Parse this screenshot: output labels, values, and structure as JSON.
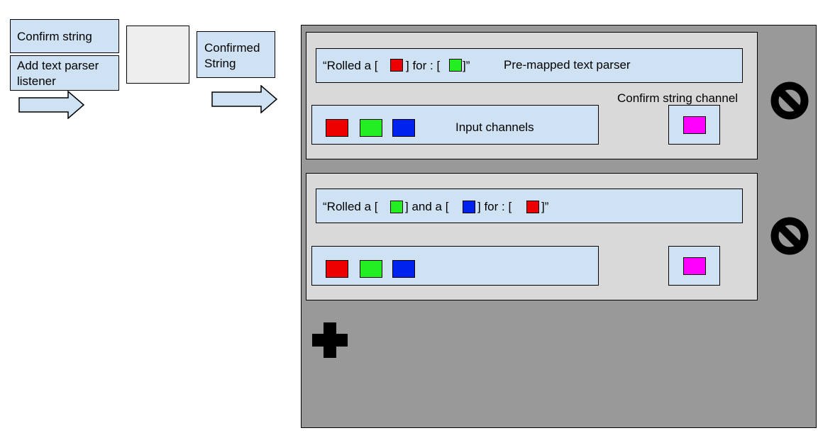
{
  "left": {
    "confirm_string": "Confirm string",
    "add_listener_line1": "Add text parser",
    "add_listener_line2": "listener",
    "confirmed_line1": "Confirmed",
    "confirmed_line2": "String"
  },
  "parsers": [
    {
      "template_parts": [
        "“Rolled a [ ",
        "] for : [",
        " ]”"
      ],
      "template_swatches": [
        "red",
        "green"
      ],
      "template_label": "Pre-mapped text parser",
      "confirm_label": "Confirm string channel",
      "input_label": "Input channels"
    },
    {
      "template_parts": [
        "“Rolled a [ ",
        "] and a [ ",
        "] for : [ ",
        "]”"
      ],
      "template_swatches": [
        "green",
        "blue",
        "red"
      ],
      "template_label": "",
      "confirm_label": "",
      "input_label": ""
    }
  ],
  "colors": {
    "red": "#ee0000",
    "green": "#22ee22",
    "blue": "#0022ee",
    "magenta": "#ff00ff",
    "box_fill": "#cfe2f3",
    "panel_fill": "#d9d9d9",
    "container_fill": "#999999"
  },
  "icons": {
    "add": "plus-icon",
    "remove": "ban-icon"
  }
}
